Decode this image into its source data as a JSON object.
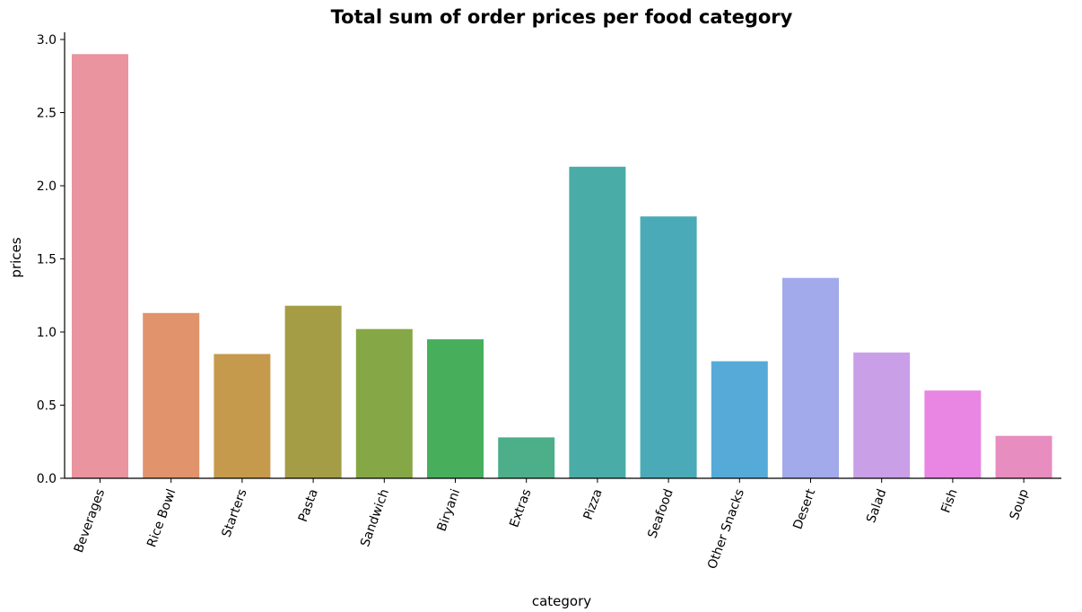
{
  "chart_data": {
    "type": "bar",
    "title": "Total sum of order prices per food category",
    "xlabel": "category",
    "ylabel": "prices",
    "categories": [
      "Beverages",
      "Rice Bowl",
      "Starters",
      "Pasta",
      "Sandwich",
      "Biryani",
      "Extras",
      "Pizza",
      "Seafood",
      "Other Snacks",
      "Desert",
      "Salad",
      "Fish",
      "Soup"
    ],
    "values": [
      2.9,
      1.13,
      0.85,
      1.18,
      1.02,
      0.95,
      0.28,
      2.13,
      1.79,
      0.8,
      1.37,
      0.86,
      0.6,
      0.29
    ],
    "colors": [
      "#e9949f",
      "#e1936c",
      "#c59a4c",
      "#a49d45",
      "#86a745",
      "#47af5b",
      "#4daf8a",
      "#4aaca6",
      "#4aaab8",
      "#55aad8",
      "#a2aaeb",
      "#c99fe7",
      "#e985e3",
      "#e78dbf"
    ],
    "ylim": [
      0,
      3.0
    ],
    "yticks": [
      0.0,
      0.5,
      1.0,
      1.5,
      2.0,
      2.5,
      3.0
    ],
    "ytick_labels": [
      "0.0",
      "0.5",
      "1.0",
      "1.5",
      "2.0",
      "2.5",
      "3.0"
    ],
    "grid": false,
    "legend": "none"
  }
}
